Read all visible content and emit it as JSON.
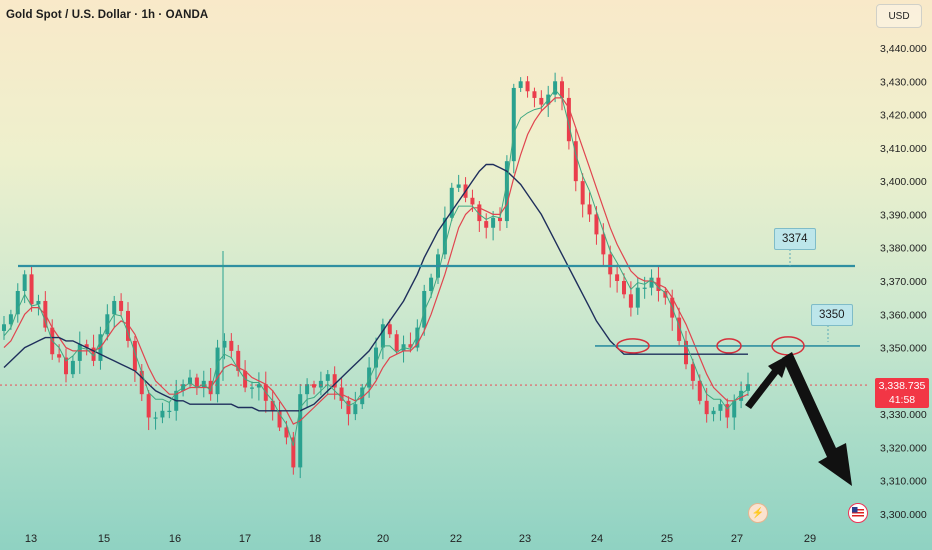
{
  "header": {
    "title": "Gold Spot / U.S. Dollar · 1h · OANDA",
    "currency": "USD"
  },
  "price_tag": {
    "price": "3,338.735",
    "countdown": "41:58"
  },
  "annotations": {
    "resistance_label": "3374",
    "support_label": "3350"
  },
  "events": {
    "lightning_icon": "lightning-icon",
    "flag_icon": "us-flag-icon"
  },
  "colors": {
    "bull": "#2aa18f",
    "bear": "#ea3d4c",
    "fast_ma": "#e0454f",
    "mid_ma": "#3fa882",
    "slow_ma": "#1f2f5c",
    "level_line": "#2f8fa1",
    "price_tag": "#f23645"
  },
  "chart_data": {
    "type": "line",
    "title": "Gold Spot / U.S. Dollar · 1h · OANDA",
    "xlabel": "",
    "ylabel": "",
    "ylim": [
      3297,
      3446
    ],
    "y_ticks": [
      3300,
      3310,
      3320,
      3330,
      3340,
      3350,
      3360,
      3370,
      3380,
      3390,
      3400,
      3410,
      3420,
      3430,
      3440
    ],
    "y_tick_labels": [
      "3,300.000",
      "3,310.000",
      "3,320.000",
      "3,330.000",
      "3,340.000",
      "3,350.000",
      "3,360.000",
      "3,370.000",
      "3,380.000",
      "3,390.000",
      "3,400.000",
      "3,410.000",
      "3,420.000",
      "3,430.000",
      "3,440.000"
    ],
    "x_tick_labels": [
      "13",
      "15",
      "16",
      "17",
      "18",
      "20",
      "22",
      "23",
      "24",
      "25",
      "27",
      "29"
    ],
    "grid": false,
    "horizontal_levels": [
      {
        "label": "3374",
        "value": 3374.5
      },
      {
        "label": "3350",
        "value": 3350.5
      }
    ],
    "current_price": 3338.735,
    "series": [
      {
        "values": [
          3357,
          3360,
          3367,
          3372,
          3363,
          3364,
          3356,
          3348,
          3347,
          3342,
          3346,
          3351,
          3350,
          3346,
          3354,
          3360,
          3364,
          3361,
          3352,
          3343,
          3336,
          3329,
          3329,
          3331,
          3331,
          3337,
          3339,
          3341,
          3338,
          3340,
          3336,
          3350,
          3352,
          3349,
          3343,
          3338,
          3338,
          3339,
          3334,
          3331,
          3326,
          3323,
          3314,
          3336,
          3339,
          3338,
          3340,
          3342,
          3338,
          3334,
          3330,
          3333,
          3338,
          3344,
          3350,
          3357,
          3354,
          3349,
          3351,
          3350,
          3356,
          3367,
          3371,
          3378,
          3389,
          3398,
          3399,
          3395,
          3393,
          3388,
          3386,
          3389,
          3388,
          3406,
          3428,
          3430,
          3427,
          3425,
          3423,
          3426,
          3430,
          3425,
          3412,
          3400,
          3393,
          3390,
          3384,
          3378,
          3372,
          3370,
          3366,
          3362,
          3368,
          3368,
          3371,
          3367,
          3365,
          3359,
          3352,
          3345,
          3340,
          3334,
          3330,
          3331,
          3333,
          3329,
          3334,
          3337,
          3339
        ]
      },
      {
        "values": [
          3350,
          3352,
          3356,
          3360,
          3362,
          3362,
          3360,
          3356,
          3353,
          3350,
          3349,
          3349,
          3349,
          3349,
          3350,
          3353,
          3356,
          3358,
          3357,
          3354,
          3349,
          3344,
          3340,
          3338,
          3336,
          3336,
          3337,
          3338,
          3338,
          3338,
          3338,
          3341,
          3344,
          3345,
          3344,
          3343,
          3341,
          3340,
          3339,
          3337,
          3334,
          3331,
          3327,
          3328,
          3330,
          3332,
          3334,
          3336,
          3336,
          3336,
          3335,
          3334,
          3335,
          3337,
          3340,
          3344,
          3347,
          3348,
          3349,
          3349,
          3351,
          3355,
          3360,
          3366,
          3372,
          3379,
          3386,
          3390,
          3392,
          3392,
          3391,
          3390,
          3390,
          3393,
          3401,
          3408,
          3414,
          3418,
          3421,
          3423,
          3425,
          3425,
          3422,
          3416,
          3410,
          3404,
          3398,
          3392,
          3386,
          3381,
          3377,
          3373,
          3371,
          3370,
          3370,
          3369,
          3368,
          3365,
          3361,
          3357,
          3352,
          3347,
          3342,
          3338,
          3336,
          3334,
          3334,
          3335,
          3336
        ]
      },
      {
        "values": [
          3344,
          3346,
          3348,
          3350,
          3351,
          3352,
          3353,
          3353,
          3353,
          3352,
          3352,
          3351,
          3350,
          3349,
          3348,
          3347,
          3346,
          3345,
          3344,
          3343,
          3341,
          3339,
          3337,
          3336,
          3335,
          3334,
          3334,
          3333,
          3333,
          3333,
          3333,
          3333,
          3333,
          3333,
          3332,
          3332,
          3332,
          3331,
          3331,
          3331,
          3331,
          3331,
          3331,
          3331,
          3332,
          3333,
          3335,
          3337,
          3339,
          3341,
          3343,
          3345,
          3347,
          3349,
          3352,
          3355,
          3358,
          3361,
          3364,
          3368,
          3372,
          3377,
          3381,
          3385,
          3388,
          3391,
          3394,
          3397,
          3400,
          3403,
          3405,
          3405,
          3404,
          3403,
          3401,
          3399,
          3396,
          3393,
          3390,
          3386,
          3382,
          3378,
          3374,
          3370,
          3366,
          3362,
          3358,
          3355,
          3352,
          3350,
          3348,
          3348,
          3348,
          3348,
          3348,
          3348,
          3348,
          3348,
          3348,
          3348,
          3348,
          3348,
          3348,
          3348,
          3348,
          3348,
          3348,
          3348,
          3348
        ]
      }
    ]
  }
}
